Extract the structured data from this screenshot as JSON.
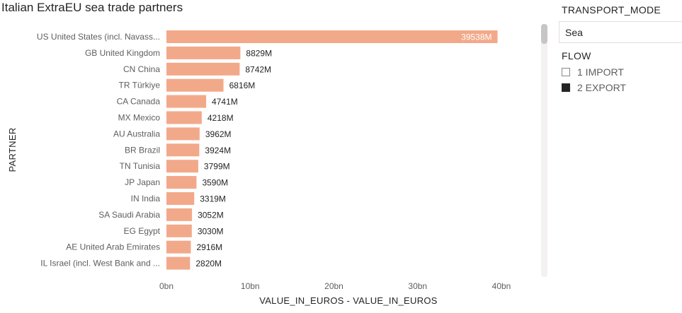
{
  "chart_data": {
    "type": "bar",
    "orientation": "horizontal",
    "title": "Italian ExtraEU sea trade partners",
    "xlabel": "VALUE_IN_EUROS - VALUE_IN_EUROS",
    "ylabel": "PARTNER",
    "categories": [
      "US United States (incl. Navass...",
      "GB United Kingdom",
      "CN China",
      "TR Türkiye",
      "CA Canada",
      "MX Mexico",
      "AU Australia",
      "BR Brazil",
      "TN Tunisia",
      "JP Japan",
      "IN India",
      "SA Saudi Arabia",
      "EG Egypt",
      "AE United Arab Emirates",
      "IL Israel (incl. West Bank and ..."
    ],
    "values": [
      39538,
      8829,
      8742,
      6816,
      4741,
      4218,
      3962,
      3924,
      3799,
      3590,
      3319,
      3052,
      3030,
      2916,
      2820
    ],
    "value_unit": "M",
    "data_labels": [
      "39538M",
      "8829M",
      "8742M",
      "6816M",
      "4741M",
      "4218M",
      "3962M",
      "3924M",
      "3799M",
      "3590M",
      "3319M",
      "3052M",
      "3030M",
      "2916M",
      "2820M"
    ],
    "xlim": [
      0,
      40000
    ],
    "xticks": [
      0,
      10000,
      20000,
      30000,
      40000
    ],
    "xtick_labels": [
      "0bn",
      "10bn",
      "20bn",
      "30bn",
      "40bn"
    ],
    "bar_color": "#f2a98a",
    "grid": false,
    "legend": "none"
  },
  "slicers": {
    "transport_mode": {
      "title": "TRANSPORT_MODE",
      "selected": "Sea"
    },
    "flow": {
      "title": "FLOW",
      "items": [
        {
          "label": "1 IMPORT",
          "checked": false
        },
        {
          "label": "2 EXPORT",
          "checked": true
        }
      ]
    }
  }
}
